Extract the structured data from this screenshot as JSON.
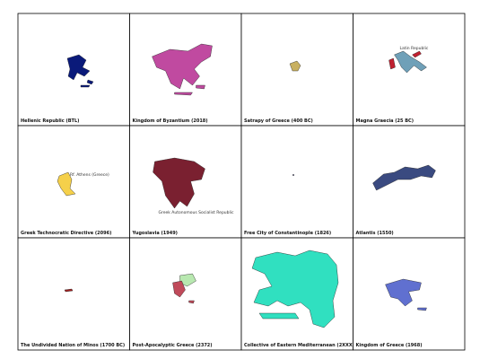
{
  "panels": [
    {
      "label": "Hellenic Republic (BTL)"
    },
    {
      "label": "Kingdom of Byzantium (2018)"
    },
    {
      "label": "Satrapy of Greece (400 BC)"
    },
    {
      "label": "Magna Graecia (25 BC)",
      "annotation": "Latin Republic"
    },
    {
      "label": "Greek Technocratic Directive (2096)",
      "annotation": "Rf. Athens (Greece)"
    },
    {
      "label": "Yugoslavia (1949)",
      "annotation": "Greek Autonomous Socialist Republic"
    },
    {
      "label": "Free City of Constantinople (1826)"
    },
    {
      "label": "Atlantis (1550)"
    },
    {
      "label": "The Undivided Nation of Minos (1700 BC)"
    },
    {
      "label": "Post-Apocalyptic Greece (2372)"
    },
    {
      "label": "Collective of Eastern Mediterranean (2XXX)"
    },
    {
      "label": "Kingdom of Greece (1968)"
    }
  ]
}
